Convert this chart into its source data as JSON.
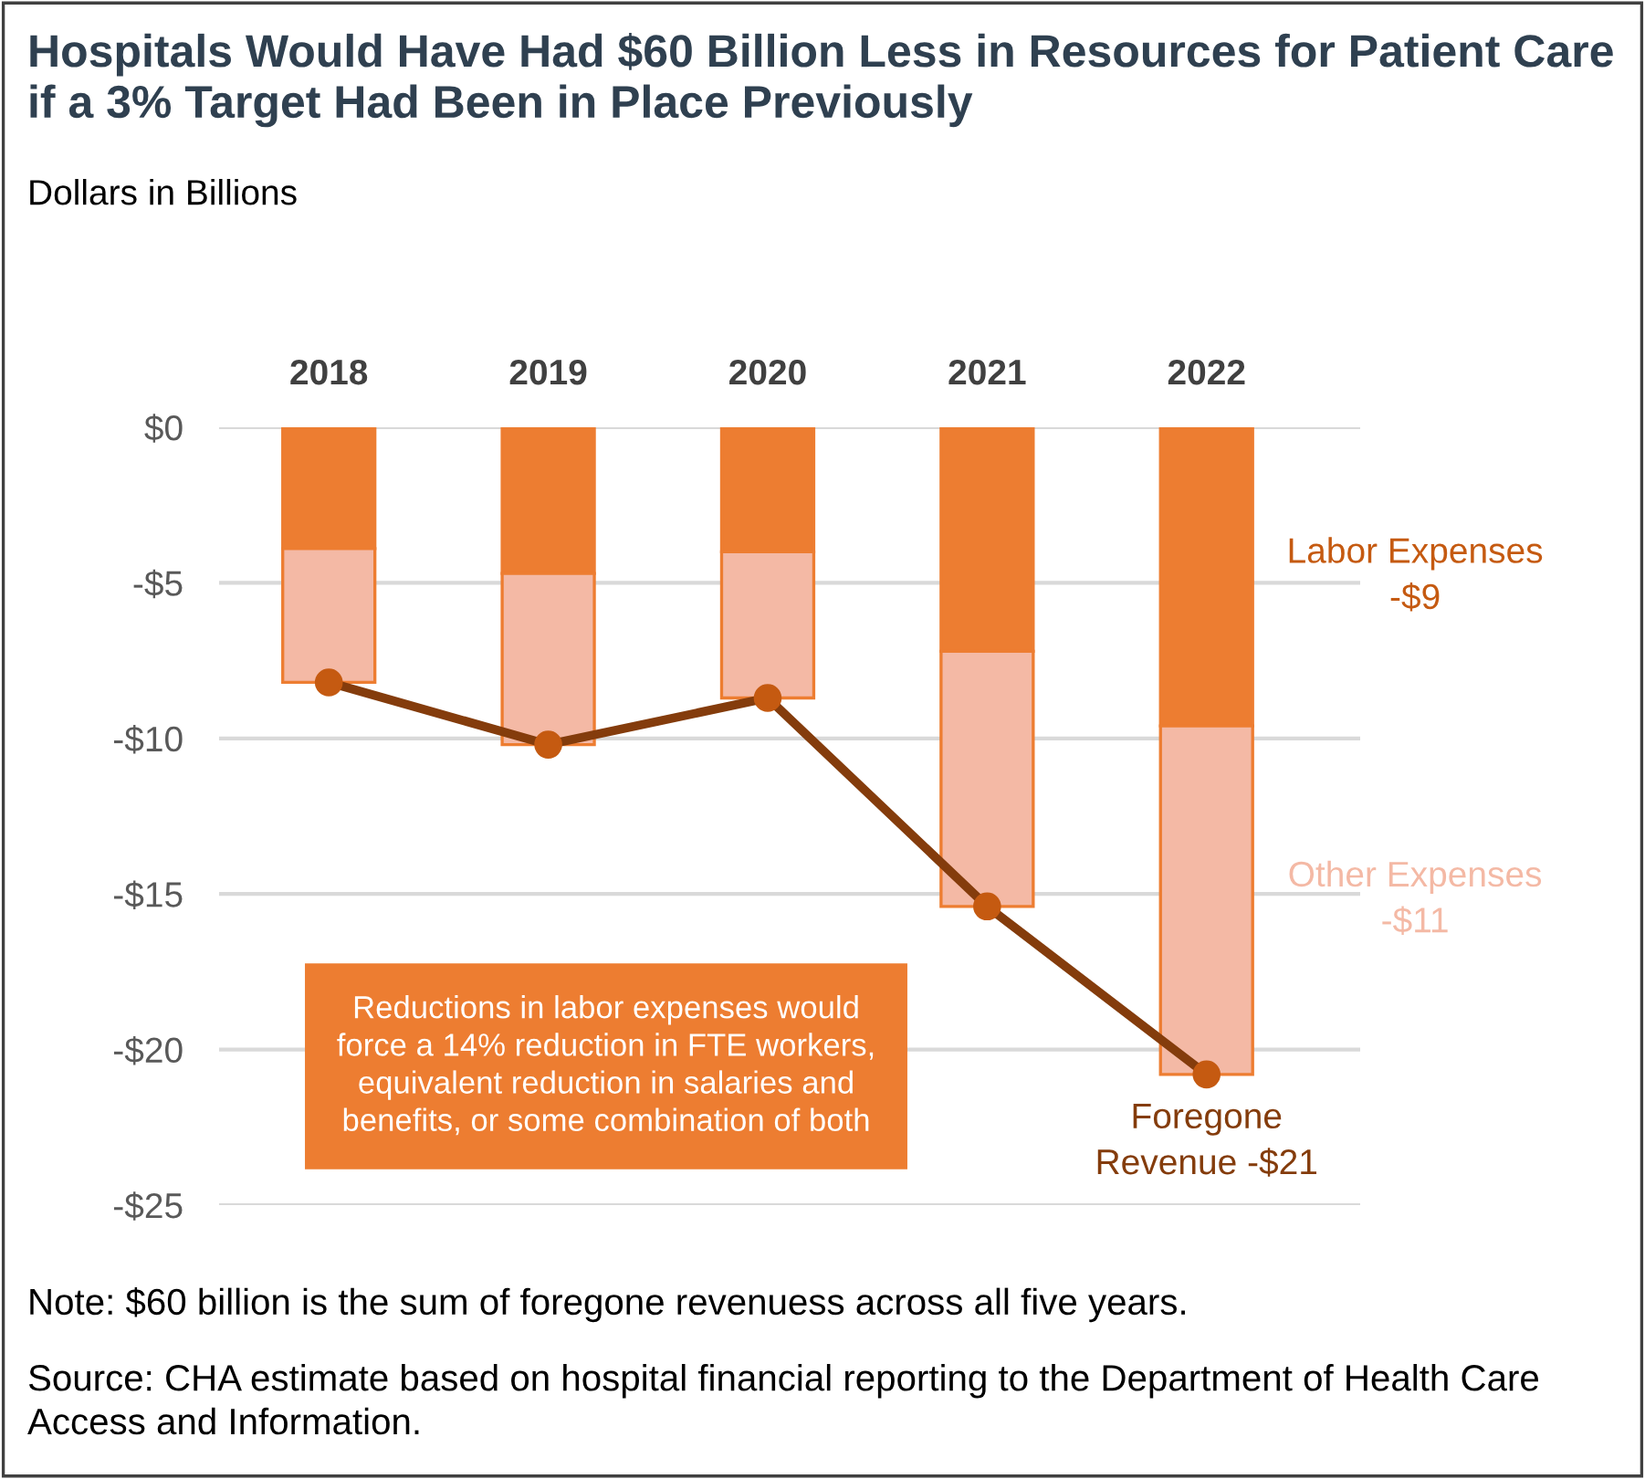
{
  "chart_data": {
    "type": "bar",
    "stacked": true,
    "title": "Hospitals Would Have Had $60 Billion Less in Resources for Patient Care if a 3% Target Had Been in Place Previously",
    "subtitle": "Dollars in Billions",
    "categories": [
      "2018",
      "2019",
      "2020",
      "2021",
      "2022"
    ],
    "series": [
      {
        "name": "Labor Expenses -$9",
        "color": "#ed7d31",
        "values": [
          -3.9,
          -4.7,
          -4.0,
          -7.2,
          -9.6
        ]
      },
      {
        "name": "Other Expenses -$11",
        "color": "#f4b9a5",
        "values": [
          -4.3,
          -5.5,
          -4.7,
          -8.2,
          -11.2
        ]
      },
      {
        "name": "Foregone Revenue -$21",
        "type": "line",
        "color": "#843c0c",
        "marker": "circle",
        "values": [
          -8.2,
          -10.2,
          -8.7,
          -15.4,
          -20.8
        ]
      }
    ],
    "ylim": [
      -25,
      0
    ],
    "yticks": [
      {
        "value": 0,
        "label": "$0"
      },
      {
        "value": -5,
        "label": "-$5"
      },
      {
        "value": -10,
        "label": "-$10"
      },
      {
        "value": -15,
        "label": "-$15"
      },
      {
        "value": -20,
        "label": "-$20"
      },
      {
        "value": -25,
        "label": "-$25"
      }
    ],
    "grid": "y",
    "legend": false,
    "annotations": [
      "Reductions in labor expenses would force a 14% reduction in FTE workers, equivalent reduction in salaries and benefits, or some combination of both",
      "Note: $60 billion is the sum of foregone revenuess across all five years.",
      "Source: CHA estimate based on hospital financial reporting to the Department of Health Care Access and Information."
    ]
  }
}
